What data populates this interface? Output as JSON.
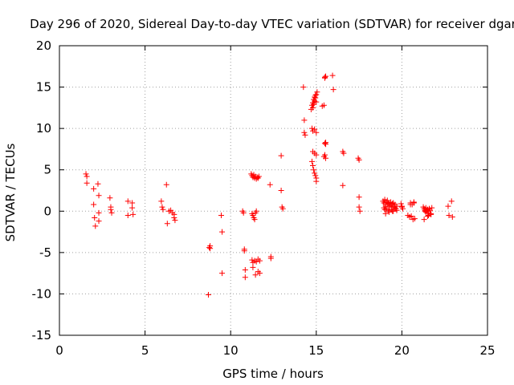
{
  "chart_data": {
    "type": "scatter",
    "title": "Day 296 of 2020, Sidereal Day-to-day VTEC variation (SDTVAR) for receiver dgar",
    "xlabel": "GPS time / hours",
    "ylabel": "SDTVAR / TECUs",
    "xlim": [
      0,
      25
    ],
    "ylim": [
      -15,
      20
    ],
    "xticks": [
      0,
      5,
      10,
      15,
      20,
      25
    ],
    "yticks": [
      -15,
      -10,
      -5,
      0,
      5,
      10,
      15,
      20
    ],
    "grid": true,
    "marker": "+",
    "color": "#ff0000",
    "series": [
      {
        "name": "SDTVAR",
        "x": [
          1.55,
          1.6,
          1.6,
          2.0,
          2.0,
          2.05,
          2.1,
          2.25,
          2.3,
          2.3,
          2.3,
          2.95,
          3.0,
          3.0,
          3.05,
          4.0,
          4.0,
          4.25,
          4.25,
          4.3,
          5.95,
          6.0,
          6.05,
          6.25,
          6.3,
          6.4,
          6.5,
          6.6,
          6.7,
          6.7,
          6.75,
          8.7,
          8.75,
          8.8,
          8.8,
          9.45,
          9.5,
          9.5,
          10.7,
          10.75,
          10.8,
          10.8,
          10.85,
          10.85,
          11.2,
          11.25,
          11.3,
          11.35,
          11.4,
          11.45,
          11.5,
          11.55,
          11.6,
          11.65,
          11.25,
          11.3,
          11.35,
          11.4,
          11.45,
          11.5,
          11.25,
          11.3,
          11.4,
          11.5,
          11.6,
          11.7,
          11.7,
          11.3,
          11.45,
          11.6,
          12.3,
          12.35,
          12.35,
          12.95,
          12.95,
          13.0,
          13.05,
          14.25,
          14.3,
          14.3,
          14.35,
          14.7,
          14.75,
          14.8,
          14.85,
          14.9,
          14.95,
          15.0,
          14.75,
          14.8,
          14.9,
          15.0,
          14.8,
          14.9,
          15.0,
          14.75,
          14.8,
          14.85,
          14.9,
          14.95,
          15.0,
          15.0,
          14.8,
          14.85,
          14.9,
          14.95,
          15.0,
          15.05,
          15.35,
          15.45,
          15.5,
          15.55,
          15.5,
          15.55,
          15.45,
          15.5,
          15.55,
          15.5,
          15.55,
          15.95,
          16.0,
          16.55,
          16.6,
          16.55,
          17.45,
          17.5,
          17.5,
          17.5,
          17.55,
          18.9,
          18.95,
          19.0,
          19.05,
          19.1,
          19.15,
          19.2,
          19.25,
          19.3,
          19.35,
          19.4,
          19.45,
          19.5,
          19.55,
          19.6,
          19.65,
          19.7,
          18.95,
          19.0,
          19.05,
          19.1,
          19.2,
          19.3,
          19.4,
          19.5,
          19.6,
          19.7,
          19.05,
          19.25,
          19.45,
          19.95,
          20.0,
          20.0,
          20.05,
          20.35,
          20.45,
          20.55,
          20.65,
          20.75,
          20.5,
          20.6,
          20.7,
          20.5,
          20.7,
          21.25,
          21.3,
          21.35,
          21.4,
          21.45,
          21.5,
          21.55,
          21.6,
          21.65,
          21.7,
          21.75,
          21.3,
          21.5,
          21.7,
          21.4,
          21.5,
          21.6,
          21.35,
          21.55,
          22.7,
          22.75,
          22.9,
          22.95
        ],
        "y": [
          4.5,
          3.4,
          4.2,
          2.7,
          0.8,
          -0.8,
          -1.8,
          3.3,
          1.9,
          -0.2,
          -1.2,
          1.6,
          0.5,
          0.2,
          -0.2,
          1.2,
          -0.5,
          1.0,
          0.4,
          -0.4,
          1.2,
          0.5,
          0.2,
          3.2,
          -1.5,
          0.0,
          0.1,
          -0.2,
          -0.4,
          -0.8,
          -1.1,
          -10.1,
          -4.4,
          -4.5,
          -4.2,
          -0.5,
          -2.5,
          -7.5,
          0.0,
          -0.2,
          -4.8,
          -4.6,
          -7.1,
          -8.0,
          4.5,
          4.3,
          4.1,
          4.4,
          4.0,
          4.2,
          3.9,
          4.1,
          4.0,
          4.2,
          -0.3,
          -0.5,
          -0.8,
          -1.0,
          -0.2,
          0.0,
          -5.9,
          -6.2,
          -6.0,
          -6.1,
          -5.8,
          -6.0,
          -7.5,
          -6.8,
          -7.7,
          -7.3,
          3.2,
          -5.5,
          -5.7,
          6.7,
          2.5,
          0.5,
          0.3,
          15.0,
          11.0,
          9.5,
          9.2,
          12.3,
          12.8,
          13.1,
          13.5,
          13.8,
          14.0,
          13.2,
          10.0,
          9.7,
          9.9,
          9.5,
          7.2,
          7.0,
          6.8,
          6.0,
          5.5,
          5.0,
          4.6,
          4.3,
          4.0,
          3.6,
          12.5,
          12.9,
          13.3,
          13.7,
          14.1,
          14.4,
          12.7,
          12.8,
          16.1,
          16.3,
          8.2,
          8.1,
          6.6,
          6.8,
          6.4,
          16.2,
          8.3,
          16.4,
          14.7,
          7.2,
          7.0,
          3.1,
          6.4,
          6.2,
          1.7,
          0.5,
          0.0,
          1.2,
          1.0,
          1.4,
          0.8,
          1.1,
          1.3,
          0.9,
          1.0,
          0.7,
          1.1,
          0.6,
          0.9,
          1.0,
          0.5,
          0.8,
          0.3,
          0.6,
          0.4,
          0.2,
          0.6,
          0.3,
          0.1,
          0.5,
          0.2,
          0.0,
          0.4,
          0.1,
          -0.3,
          -0.1,
          0.0,
          0.9,
          0.6,
          0.5,
          0.3,
          -0.5,
          -0.7,
          -0.6,
          -1.0,
          -0.9,
          1.0,
          0.8,
          1.1,
          0.8,
          1.0,
          0.5,
          0.3,
          0.1,
          0.4,
          0.0,
          0.2,
          -0.2,
          0.3,
          0.1,
          -0.3,
          0.4,
          -1.0,
          -0.6,
          -0.4,
          -0.1,
          0.2,
          0.3,
          0.0,
          -0.5,
          0.6,
          -0.5,
          1.2,
          -0.7
        ]
      }
    ]
  }
}
